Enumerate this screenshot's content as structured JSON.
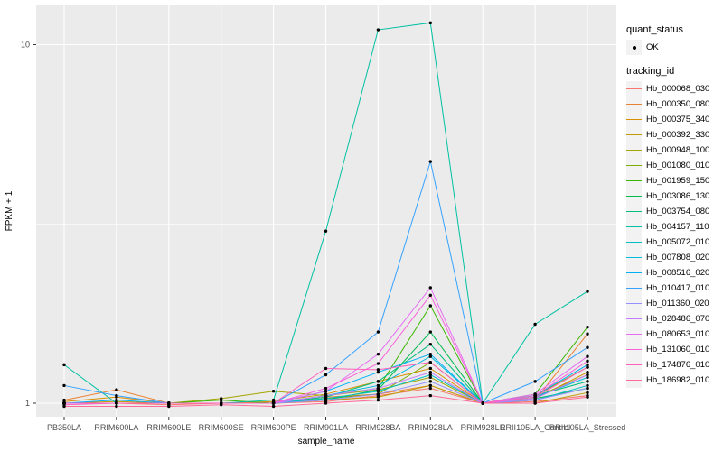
{
  "chart_data": {
    "type": "line",
    "title": "",
    "xlabel": "sample_name",
    "ylabel": "FPKM + 1",
    "y_scale": "log10",
    "y_axis_tick_labels": [
      "1",
      "10"
    ],
    "y_tick_values": [
      1,
      10
    ],
    "y_minor_values": [
      3.162
    ],
    "ylim": [
      0.92,
      12.9
    ],
    "grid": true,
    "legend_position": "right",
    "panel_bg": "#EBEBEB",
    "grid_color": "#FFFFFF",
    "point_color": "#000000",
    "axis_text_color": "#4D4D4D",
    "tick_color": "#333333",
    "categories": [
      "PB350LA",
      "RRIM600LA",
      "RRIM600LE",
      "RRIM600SE",
      "RRIM600PE",
      "RRIM901LA",
      "RRIM928BA",
      "RRIM928LA",
      "RRIM928LE",
      "RRII105LA_Control",
      "RRII105LA_Stressed"
    ],
    "series": [
      {
        "name": "Hb_000068_030",
        "color": "#F8766D",
        "values": [
          1.0,
          1.0,
          0.99,
          1.0,
          1.0,
          1.01,
          1.05,
          1.1,
          1.0,
          1.01,
          1.05
        ]
      },
      {
        "name": "Hb_000350_080",
        "color": "#EA8331",
        "values": [
          1.02,
          1.09,
          1.0,
          1.0,
          1.0,
          1.04,
          1.06,
          1.12,
          1.0,
          1.02,
          1.56
        ]
      },
      {
        "name": "Hb_000375_340",
        "color": "#D89000",
        "values": [
          1.01,
          1.04,
          1.0,
          1.0,
          1.01,
          1.06,
          1.15,
          1.25,
          1.0,
          1.03,
          1.22
        ]
      },
      {
        "name": "Hb_000392_330",
        "color": "#C09B00",
        "values": [
          1.0,
          1.01,
          1.0,
          1.0,
          1.0,
          1.02,
          1.04,
          1.12,
          1.0,
          1.0,
          1.07
        ]
      },
      {
        "name": "Hb_000948_100",
        "color": "#A3A500",
        "values": [
          1.0,
          1.0,
          1.0,
          1.03,
          1.08,
          1.05,
          1.09,
          1.18,
          1.0,
          1.04,
          1.2
        ]
      },
      {
        "name": "Hb_001080_010",
        "color": "#7CAE00",
        "values": [
          1.0,
          1.0,
          1.0,
          1.0,
          1.0,
          1.03,
          1.06,
          1.3,
          1.0,
          1.05,
          1.26
        ]
      },
      {
        "name": "Hb_001959_150",
        "color": "#39B600",
        "values": [
          1.0,
          1.0,
          1.0,
          1.02,
          1.0,
          1.05,
          1.1,
          1.87,
          1.0,
          1.06,
          1.63
        ]
      },
      {
        "name": "Hb_003086_130",
        "color": "#00BB4E",
        "values": [
          1.0,
          1.0,
          1.0,
          1.0,
          1.0,
          1.02,
          1.09,
          1.58,
          1.0,
          1.03,
          1.1
        ]
      },
      {
        "name": "Hb_003754_080",
        "color": "#00BF7D",
        "values": [
          1.0,
          1.0,
          1.0,
          1.0,
          1.0,
          1.04,
          1.15,
          1.46,
          1.0,
          1.05,
          1.15
        ]
      },
      {
        "name": "Hb_004157_110",
        "color": "#00C1A3",
        "values": [
          1.28,
          1.0,
          1.0,
          1.0,
          1.02,
          3.02,
          11.0,
          11.5,
          1.0,
          1.66,
          2.05
        ]
      },
      {
        "name": "Hb_005072_010",
        "color": "#00BFC4",
        "values": [
          1.0,
          1.0,
          1.0,
          1.0,
          1.0,
          1.03,
          1.08,
          1.2,
          1.0,
          1.02,
          1.12
        ]
      },
      {
        "name": "Hb_007808_020",
        "color": "#00BAE0",
        "values": [
          1.0,
          1.0,
          1.0,
          1.0,
          1.0,
          1.05,
          1.12,
          1.35,
          1.0,
          1.04,
          1.18
        ]
      },
      {
        "name": "Hb_008516_020",
        "color": "#00B0F6",
        "values": [
          1.0,
          1.02,
          1.0,
          1.0,
          1.0,
          1.08,
          1.22,
          1.37,
          1.0,
          1.05,
          1.28
        ]
      },
      {
        "name": "Hb_010417_010",
        "color": "#35A2FF",
        "values": [
          1.12,
          1.05,
          1.0,
          1.0,
          1.0,
          1.2,
          1.58,
          4.72,
          1.0,
          1.15,
          1.43
        ]
      },
      {
        "name": "Hb_011360_020",
        "color": "#9590FF",
        "values": [
          1.0,
          1.0,
          1.0,
          1.0,
          1.0,
          1.02,
          1.06,
          1.15,
          1.0,
          1.02,
          1.1
        ]
      },
      {
        "name": "Hb_028486_070",
        "color": "#C77CFF",
        "values": [
          1.0,
          1.0,
          1.0,
          1.0,
          1.0,
          1.05,
          1.1,
          1.22,
          1.0,
          1.03,
          1.2
        ]
      },
      {
        "name": "Hb_080653_010",
        "color": "#E76BF3",
        "values": [
          1.0,
          1.0,
          1.0,
          1.0,
          1.0,
          1.08,
          1.37,
          2.1,
          1.0,
          1.06,
          1.35
        ]
      },
      {
        "name": "Hb_131060_010",
        "color": "#FA62DB",
        "values": [
          1.0,
          1.0,
          1.0,
          1.0,
          1.0,
          1.1,
          1.29,
          2.0,
          1.0,
          1.05,
          1.31
        ]
      },
      {
        "name": "Hb_174876_010",
        "color": "#FF62BC",
        "values": [
          0.99,
          1.0,
          1.0,
          1.0,
          1.0,
          1.25,
          1.24,
          1.3,
          1.0,
          1.04,
          1.26
        ]
      },
      {
        "name": "Hb_186982_010",
        "color": "#FF6A98",
        "values": [
          0.98,
          0.98,
          0.98,
          0.99,
          0.98,
          1.0,
          1.02,
          1.05,
          1.0,
          1.0,
          1.04
        ]
      }
    ]
  },
  "legend": {
    "quant_title": "quant_status",
    "quant_items": [
      {
        "label": "OK",
        "symbol": "point"
      }
    ],
    "tracking_title": "tracking_id"
  }
}
